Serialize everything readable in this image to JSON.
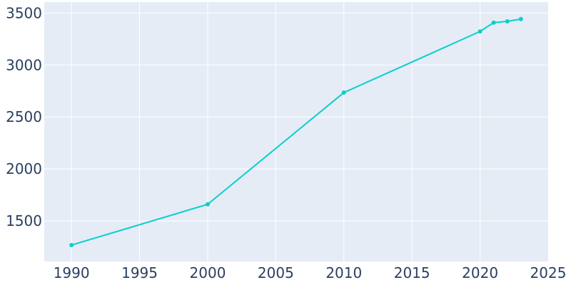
{
  "chart_data": {
    "type": "line",
    "title": "",
    "xlabel": "",
    "ylabel": "",
    "x": [
      1990,
      2000,
      2010,
      2020,
      2021,
      2022,
      2023
    ],
    "series": [
      {
        "values": [
          1268,
          1660,
          2735,
          3323,
          3408,
          3420,
          3442
        ]
      }
    ],
    "xlim": [
      1988,
      2025
    ],
    "ylim": [
      1110,
      3605
    ],
    "x_ticks": [
      1990,
      1995,
      2000,
      2005,
      2010,
      2015,
      2020,
      2025
    ],
    "y_ticks": [
      1500,
      2000,
      2500,
      3000,
      3500
    ],
    "grid": true,
    "legend": "none"
  },
  "colors": {
    "plot_background": "#E5ECF6",
    "grid": "#FFFFFF",
    "line": "#0BCFCB",
    "tick_text": "#2A3F5F"
  }
}
